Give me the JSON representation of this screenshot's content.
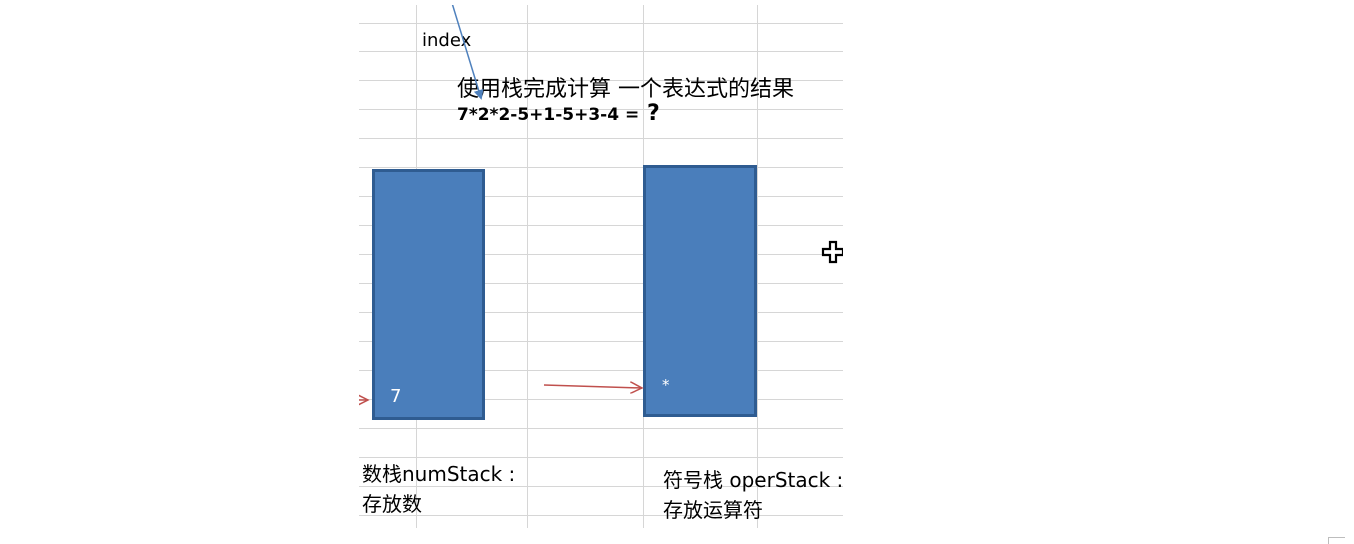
{
  "diagram": {
    "index_label": "index",
    "title": "使用栈完成计算 一个表达式的结果",
    "expression": "7*2*2-5+1-5+3-4 = ",
    "question_mark": "?",
    "num_stack": {
      "top_value": "7",
      "caption_line1": "数栈numStack :",
      "caption_line2": "存放数"
    },
    "oper_stack": {
      "top_value": "*",
      "caption_line1": "符号栈 operStack :",
      "caption_line2": "存放运算符"
    }
  },
  "colors": {
    "stack_fill": "#4a7ebb",
    "stack_border": "#2f5c91",
    "index_arrow": "#4f81bd",
    "red_arrow": "#c0504d",
    "grid": "#d6d6d6"
  },
  "icons": {
    "cursor": "move-cursor-icon"
  }
}
